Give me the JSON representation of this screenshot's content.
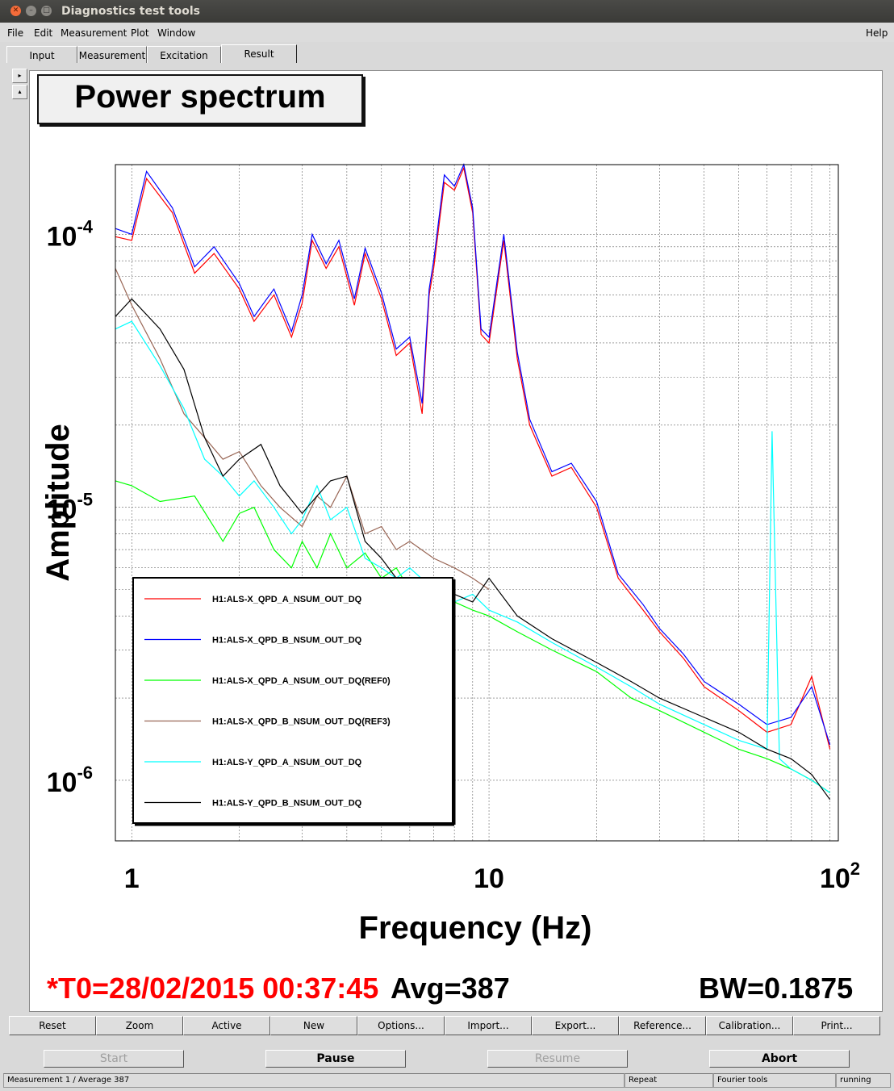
{
  "window": {
    "title": "Diagnostics test tools"
  },
  "menu": {
    "file": "File",
    "edit": "Edit",
    "measurement": "Measurement",
    "plot": "Plot",
    "window": "Window",
    "help": "Help"
  },
  "tabs": [
    "Input",
    "Measurement",
    "Excitation",
    "Result"
  ],
  "active_tab": "Result",
  "plot_title": "Power spectrum",
  "status": {
    "t0": "*T0=28/02/2015 00:37:45",
    "avg": "Avg=387",
    "bw": "BW=0.1875"
  },
  "toolbar": [
    "Reset",
    "Zoom",
    "Active",
    "New",
    "Options...",
    "Import...",
    "Export...",
    "Reference...",
    "Calibration...",
    "Print..."
  ],
  "controls": {
    "start": "Start",
    "pause": "Pause",
    "resume": "Resume",
    "abort": "Abort"
  },
  "statusbar": {
    "measurement": "Measurement 1 / Average 387",
    "repeat": "Repeat",
    "fourier": "Fourier tools",
    "state": "running"
  },
  "colors": {
    "ch1": "#ff0000",
    "ch2": "#0000ff",
    "ch3": "#00ff00",
    "ch4": "#996655",
    "ch5": "#00ffff",
    "ch6": "#000000"
  },
  "chart_data": {
    "type": "line",
    "title": "Power spectrum",
    "xlabel": "Frequency (Hz)",
    "ylabel": "Amplitude",
    "xscale": "log",
    "yscale": "log",
    "xlim": [
      0.9,
      95
    ],
    "ylim": [
      6e-07,
      0.00018
    ],
    "grid": true,
    "legend_position": "bottom-left",
    "x_ticks": [
      "1",
      "10",
      "10^2"
    ],
    "y_ticks": [
      "10^-6",
      "10^-5",
      "10^-4"
    ],
    "series": [
      {
        "name": "H1:ALS-X_QPD_A_NSUM_OUT_DQ",
        "color": "#ff0000",
        "x": [
          0.9,
          1,
          1.1,
          1.3,
          1.5,
          1.7,
          2,
          2.2,
          2.5,
          2.8,
          3,
          3.2,
          3.5,
          3.8,
          4.2,
          4.5,
          5,
          5.5,
          6,
          6.5,
          6.8,
          7,
          7.5,
          8,
          8.5,
          9,
          9.5,
          10,
          11,
          12,
          13,
          15,
          17,
          20,
          23,
          27,
          30,
          35,
          40,
          50,
          60,
          70,
          80,
          90
        ],
        "y": [
          9.8e-05,
          9.5e-05,
          0.00016,
          0.00012,
          7.2e-05,
          8.5e-05,
          6.3e-05,
          4.8e-05,
          6e-05,
          4.2e-05,
          5.6e-05,
          9.5e-05,
          7.5e-05,
          9e-05,
          5.5e-05,
          8.5e-05,
          5.8e-05,
          3.6e-05,
          4e-05,
          2.2e-05,
          6e-05,
          7.5e-05,
          0.000155,
          0.000145,
          0.000175,
          0.00012,
          4.3e-05,
          4e-05,
          9.5e-05,
          3.5e-05,
          2e-05,
          1.3e-05,
          1.4e-05,
          1e-05,
          5.5e-06,
          4.2e-06,
          3.5e-06,
          2.8e-06,
          2.2e-06,
          1.8e-06,
          1.5e-06,
          1.6e-06,
          2.4e-06,
          1.3e-06
        ]
      },
      {
        "name": "H1:ALS-X_QPD_B_NSUM_OUT_DQ",
        "color": "#0000ff",
        "x": [
          0.9,
          1,
          1.1,
          1.3,
          1.5,
          1.7,
          2,
          2.2,
          2.5,
          2.8,
          3,
          3.2,
          3.5,
          3.8,
          4.2,
          4.5,
          5,
          5.5,
          6,
          6.5,
          6.8,
          7,
          7.5,
          8,
          8.5,
          9,
          9.5,
          10,
          11,
          12,
          13,
          15,
          17,
          20,
          23,
          27,
          30,
          35,
          40,
          50,
          60,
          70,
          80,
          90
        ],
        "y": [
          0.000105,
          0.0001,
          0.00017,
          0.000125,
          7.6e-05,
          9e-05,
          6.6e-05,
          5e-05,
          6.3e-05,
          4.4e-05,
          6e-05,
          0.0001,
          7.8e-05,
          9.5e-05,
          5.8e-05,
          8.9e-05,
          6.1e-05,
          3.8e-05,
          4.2e-05,
          2.4e-05,
          6.3e-05,
          8e-05,
          0.000165,
          0.00015,
          0.00018,
          0.000125,
          4.5e-05,
          4.2e-05,
          0.0001,
          3.7e-05,
          2.1e-05,
          1.35e-05,
          1.45e-05,
          1.05e-05,
          5.7e-06,
          4.4e-06,
          3.6e-06,
          2.9e-06,
          2.3e-06,
          1.9e-06,
          1.6e-06,
          1.7e-06,
          2.2e-06,
          1.35e-06
        ]
      },
      {
        "name": "H1:ALS-X_QPD_A_NSUM_OUT_DQ(REF0)",
        "color": "#00ff00",
        "x": [
          0.9,
          1,
          1.2,
          1.5,
          1.8,
          2,
          2.2,
          2.5,
          2.8,
          3,
          3.3,
          3.6,
          4,
          4.5,
          5,
          5.5,
          6,
          7,
          8,
          9,
          10,
          12,
          15,
          20,
          25,
          30,
          40,
          50,
          60,
          70,
          80,
          90
        ],
        "y": [
          1.25e-05,
          1.2e-05,
          1.05e-05,
          1.1e-05,
          7.5e-06,
          9.5e-06,
          1e-05,
          7e-06,
          6e-06,
          7.5e-06,
          6e-06,
          8e-06,
          6e-06,
          6.8e-06,
          5.5e-06,
          6e-06,
          5e-06,
          5.2e-06,
          4.5e-06,
          4.2e-06,
          4e-06,
          3.5e-06,
          3e-06,
          2.5e-06,
          2e-06,
          1.8e-06,
          1.5e-06,
          1.3e-06,
          1.2e-06,
          1.1e-06,
          1e-06,
          9e-07
        ]
      },
      {
        "name": "H1:ALS-X_QPD_B_NSUM_OUT_DQ(REF3)",
        "color": "#996655",
        "x": [
          0.9,
          1,
          1.2,
          1.4,
          1.6,
          1.8,
          2,
          2.3,
          2.6,
          3,
          3.3,
          3.6,
          4,
          4.5,
          5,
          5.5,
          6,
          7,
          8,
          9,
          10
        ],
        "y": [
          7.5e-05,
          5.5e-05,
          3.5e-05,
          2.2e-05,
          1.8e-05,
          1.5e-05,
          1.6e-05,
          1.2e-05,
          1e-05,
          8.5e-06,
          1.1e-05,
          1e-05,
          1.3e-05,
          8e-06,
          8.5e-06,
          7e-06,
          7.5e-06,
          6.5e-06,
          6e-06,
          5.5e-06,
          5e-06
        ]
      },
      {
        "name": "H1:ALS-Y_QPD_A_NSUM_OUT_DQ",
        "color": "#00ffff",
        "x": [
          0.9,
          1,
          1.2,
          1.4,
          1.6,
          1.8,
          2,
          2.2,
          2.5,
          2.8,
          3,
          3.3,
          3.6,
          4,
          4.5,
          5,
          5.5,
          6,
          7,
          8,
          9,
          10,
          12,
          15,
          20,
          25,
          30,
          40,
          50,
          60,
          62,
          65,
          70,
          80,
          90
        ],
        "y": [
          4.5e-05,
          4.8e-05,
          3.3e-05,
          2.3e-05,
          1.5e-05,
          1.3e-05,
          1.1e-05,
          1.25e-05,
          1e-05,
          8e-06,
          9e-06,
          1.2e-05,
          9e-06,
          1e-05,
          6.5e-06,
          6e-06,
          5.5e-06,
          6e-06,
          5e-06,
          4.5e-06,
          4.8e-06,
          4.2e-06,
          3.8e-06,
          3.2e-06,
          2.6e-06,
          2.2e-06,
          1.9e-06,
          1.6e-06,
          1.4e-06,
          1.3e-06,
          1.9e-05,
          1.2e-06,
          1.1e-06,
          1e-06,
          9e-07
        ]
      },
      {
        "name": "H1:ALS-Y_QPD_B_NSUM_OUT_DQ",
        "color": "#000000",
        "x": [
          0.9,
          1,
          1.2,
          1.4,
          1.6,
          1.8,
          2,
          2.3,
          2.6,
          3,
          3.3,
          3.6,
          4,
          4.5,
          5,
          5.5,
          6,
          7,
          8,
          9,
          10,
          12,
          15,
          20,
          25,
          30,
          40,
          50,
          60,
          70,
          80,
          90
        ],
        "y": [
          5e-05,
          5.8e-05,
          4.5e-05,
          3.2e-05,
          1.8e-05,
          1.3e-05,
          1.5e-05,
          1.7e-05,
          1.2e-05,
          9.5e-06,
          1.1e-05,
          1.25e-05,
          1.3e-05,
          7.5e-06,
          6.5e-06,
          5.5e-06,
          5.5e-06,
          5e-06,
          4.8e-06,
          4.5e-06,
          5.5e-06,
          4e-06,
          3.3e-06,
          2.7e-06,
          2.3e-06,
          2e-06,
          1.7e-06,
          1.5e-06,
          1.3e-06,
          1.2e-06,
          1.05e-06,
          8.5e-07
        ]
      }
    ]
  }
}
